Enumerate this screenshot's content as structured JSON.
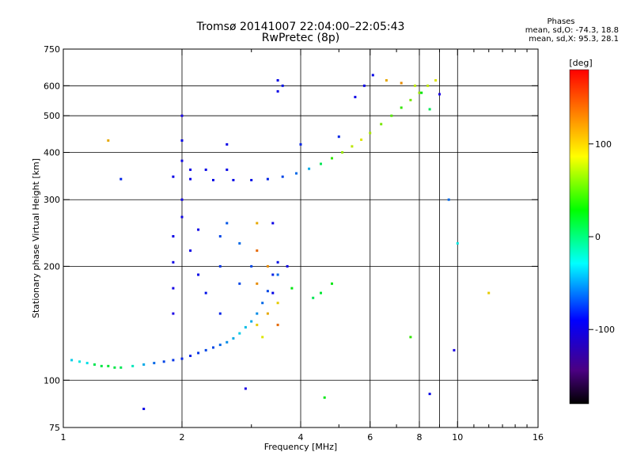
{
  "title": "Tromsø 20141007 22:04:00–22:05:43",
  "subtitle": "RwPretec (8p)",
  "stats": {
    "heading": "Phases",
    "line_o": "mean, sd,O: -74.3, 18.8",
    "line_x": "mean, sd,X:  95.3, 28.1"
  },
  "chart_data": {
    "type": "scatter",
    "xlabel": "Frequency [MHz]",
    "ylabel": "Stationary phase Virtual Height [km]",
    "xscale": "log",
    "yscale": "log",
    "xlim": [
      1,
      16
    ],
    "ylim": [
      75,
      750
    ],
    "grid": true,
    "xticks": [
      {
        "value": 1,
        "label": "1"
      },
      {
        "value": 2,
        "label": "2"
      },
      {
        "value": 4,
        "label": "4"
      },
      {
        "value": 6,
        "label": "6"
      },
      {
        "value": 8,
        "label": "8"
      },
      {
        "value": 10,
        "label": "10"
      },
      {
        "value": 16,
        "label": "16"
      }
    ],
    "xminor": [
      3,
      5,
      7,
      9,
      11,
      12,
      13,
      14,
      15
    ],
    "xgrid": [
      2,
      4,
      6,
      8,
      9,
      10
    ],
    "yticks": [
      {
        "value": 75,
        "label": "75"
      },
      {
        "value": 100,
        "label": "100"
      },
      {
        "value": 200,
        "label": "200"
      },
      {
        "value": 300,
        "label": "300"
      },
      {
        "value": 400,
        "label": "400"
      },
      {
        "value": 500,
        "label": "500"
      },
      {
        "value": 600,
        "label": "600"
      },
      {
        "value": 750,
        "label": "750"
      }
    ],
    "ygrid": [
      100,
      200,
      300,
      400,
      500,
      600
    ],
    "colorbar": {
      "label": "[deg]",
      "range": [
        -180,
        180
      ],
      "ticks": [
        {
          "value": 100,
          "label": "100"
        },
        {
          "value": 0,
          "label": "0"
        },
        {
          "value": -100,
          "label": "-100"
        }
      ]
    },
    "series": [
      {
        "trace": "lower layer trace",
        "points": [
          [
            1.05,
            113,
            -30
          ],
          [
            1.1,
            112,
            -20
          ],
          [
            1.15,
            111,
            -25
          ],
          [
            1.2,
            110,
            20
          ],
          [
            1.25,
            109,
            25
          ],
          [
            1.3,
            109,
            30
          ],
          [
            1.35,
            108,
            25
          ],
          [
            1.4,
            108,
            20
          ],
          [
            1.5,
            109,
            -10
          ],
          [
            1.6,
            110,
            -40
          ],
          [
            1.7,
            111,
            -60
          ],
          [
            1.8,
            112,
            -70
          ],
          [
            1.9,
            113,
            -75
          ],
          [
            2.0,
            114,
            -80
          ],
          [
            2.1,
            116,
            -80
          ],
          [
            2.2,
            118,
            -75
          ],
          [
            2.3,
            120,
            -70
          ],
          [
            2.4,
            122,
            -70
          ],
          [
            2.5,
            124,
            -60
          ],
          [
            2.6,
            126,
            -50
          ],
          [
            2.7,
            129,
            -40
          ],
          [
            2.8,
            133,
            -30
          ],
          [
            2.9,
            138,
            -35
          ],
          [
            3.0,
            143,
            -40
          ],
          [
            3.1,
            150,
            -50
          ],
          [
            3.2,
            160,
            -60
          ],
          [
            3.3,
            172,
            -70
          ],
          [
            3.4,
            190,
            -80
          ],
          [
            3.5,
            205,
            -85
          ]
        ]
      },
      {
        "trace": "upper layer trace",
        "points": [
          [
            1.9,
            345,
            -95
          ],
          [
            2.1,
            340,
            -95
          ],
          [
            2.4,
            338,
            -90
          ],
          [
            2.7,
            338,
            -90
          ],
          [
            3.0,
            338,
            -85
          ],
          [
            3.3,
            340,
            -80
          ],
          [
            3.6,
            345,
            -70
          ],
          [
            3.9,
            352,
            -60
          ],
          [
            4.2,
            362,
            -40
          ],
          [
            4.5,
            373,
            20
          ],
          [
            4.8,
            386,
            60
          ],
          [
            5.1,
            400,
            90
          ],
          [
            5.4,
            415,
            100
          ],
          [
            5.7,
            432,
            110
          ],
          [
            6.0,
            450,
            95
          ],
          [
            6.4,
            475,
            80
          ],
          [
            6.8,
            500,
            70
          ],
          [
            7.2,
            525,
            60
          ],
          [
            7.6,
            550,
            80
          ],
          [
            8.0,
            575,
            90
          ],
          [
            8.4,
            600,
            100
          ],
          [
            8.8,
            620,
            110
          ]
        ]
      },
      {
        "trace": "scattered echoes",
        "points": [
          [
            1.9,
            150,
            -110
          ],
          [
            1.9,
            175,
            -105
          ],
          [
            1.9,
            205,
            -100
          ],
          [
            1.9,
            240,
            -95
          ],
          [
            2.0,
            270,
            -100
          ],
          [
            2.0,
            300,
            -105
          ],
          [
            2.0,
            380,
            -100
          ],
          [
            2.0,
            430,
            -95
          ],
          [
            2.0,
            500,
            -110
          ],
          [
            2.1,
            220,
            -100
          ],
          [
            2.1,
            360,
            -95
          ],
          [
            2.2,
            190,
            -90
          ],
          [
            2.2,
            250,
            -95
          ],
          [
            2.3,
            170,
            -85
          ],
          [
            2.3,
            360,
            -90
          ],
          [
            2.5,
            150,
            -80
          ],
          [
            2.5,
            200,
            -75
          ],
          [
            2.5,
            240,
            -70
          ],
          [
            2.6,
            260,
            -65
          ],
          [
            2.6,
            360,
            -90
          ],
          [
            2.6,
            420,
            -95
          ],
          [
            2.8,
            180,
            -70
          ],
          [
            2.8,
            230,
            -60
          ],
          [
            3.0,
            200,
            -70
          ],
          [
            3.1,
            140,
            120
          ],
          [
            3.1,
            180,
            140
          ],
          [
            3.1,
            220,
            150
          ],
          [
            3.1,
            260,
            130
          ],
          [
            3.2,
            130,
            110
          ],
          [
            3.3,
            150,
            130
          ],
          [
            3.3,
            200,
            140
          ],
          [
            3.4,
            170,
            -90
          ],
          [
            3.4,
            260,
            -100
          ],
          [
            3.5,
            140,
            150
          ],
          [
            3.5,
            160,
            120
          ],
          [
            3.5,
            190,
            -60
          ],
          [
            3.5,
            580,
            -95
          ],
          [
            3.5,
            620,
            -90
          ],
          [
            3.6,
            600,
            -85
          ],
          [
            3.7,
            200,
            -95
          ],
          [
            3.8,
            175,
            40
          ],
          [
            4.0,
            420,
            -80
          ],
          [
            4.3,
            165,
            20
          ],
          [
            4.5,
            170,
            30
          ],
          [
            4.8,
            180,
            40
          ],
          [
            5.0,
            440,
            -80
          ],
          [
            5.5,
            560,
            -100
          ],
          [
            5.8,
            600,
            -95
          ],
          [
            6.1,
            640,
            -90
          ],
          [
            6.6,
            620,
            130
          ],
          [
            7.2,
            610,
            140
          ],
          [
            7.8,
            600,
            100
          ],
          [
            8.1,
            575,
            40
          ],
          [
            8.5,
            520,
            20
          ],
          [
            9.0,
            570,
            -110
          ],
          [
            9.5,
            300,
            -60
          ],
          [
            10.0,
            230,
            -20
          ],
          [
            12.0,
            170,
            120
          ],
          [
            1.3,
            430,
            130
          ],
          [
            1.4,
            340,
            -80
          ],
          [
            1.6,
            84,
            -100
          ],
          [
            2.9,
            95,
            -110
          ],
          [
            7.6,
            130,
            60
          ],
          [
            8.5,
            92,
            -90
          ],
          [
            9.8,
            120,
            -110
          ],
          [
            4.6,
            90,
            40
          ]
        ]
      }
    ]
  }
}
